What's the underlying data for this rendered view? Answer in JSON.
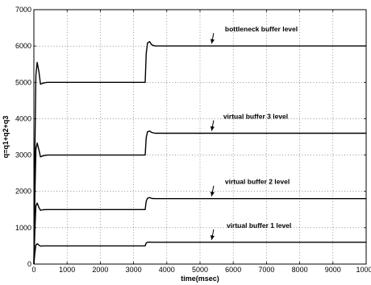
{
  "chart_data": {
    "type": "line",
    "title": "",
    "xlabel": "time(msec)",
    "ylabel": "q=q1+q2+q3",
    "xlim": [
      0,
      10000
    ],
    "ylim": [
      0,
      7000
    ],
    "xticks": [
      0,
      1000,
      2000,
      3000,
      4000,
      5000,
      6000,
      7000,
      8000,
      9000,
      10000
    ],
    "yticks": [
      0,
      1000,
      2000,
      3000,
      4000,
      5000,
      6000,
      7000
    ],
    "grid": true,
    "series": [
      {
        "name": "bottleneck buffer level",
        "x": [
          0,
          30,
          60,
          100,
          150,
          200,
          280,
          400,
          3350,
          3380,
          3420,
          3480,
          3550,
          3650,
          3800,
          10000
        ],
        "y": [
          0,
          3000,
          5200,
          5550,
          5300,
          4950,
          4980,
          5000,
          5000,
          5800,
          6080,
          6120,
          6030,
          6000,
          6000,
          6000
        ]
      },
      {
        "name": "virtual buffer 3 level",
        "x": [
          0,
          30,
          60,
          100,
          150,
          200,
          280,
          400,
          3350,
          3380,
          3420,
          3480,
          3550,
          3650,
          3800,
          10000
        ],
        "y": [
          0,
          1800,
          3150,
          3330,
          3150,
          2950,
          2980,
          3000,
          3000,
          3480,
          3640,
          3660,
          3620,
          3600,
          3600,
          3600
        ]
      },
      {
        "name": "virtual buffer 2 level",
        "x": [
          0,
          30,
          60,
          100,
          150,
          200,
          280,
          400,
          3350,
          3380,
          3420,
          3480,
          3550,
          3650,
          3800,
          10000
        ],
        "y": [
          0,
          900,
          1600,
          1680,
          1560,
          1480,
          1495,
          1500,
          1500,
          1730,
          1810,
          1830,
          1805,
          1800,
          1800,
          1800
        ]
      },
      {
        "name": "virtual buffer 1 level",
        "x": [
          0,
          30,
          60,
          100,
          150,
          200,
          280,
          400,
          3350,
          3380,
          3420,
          3480,
          3550,
          3650,
          3800,
          10000
        ],
        "y": [
          0,
          300,
          520,
          560,
          520,
          495,
          500,
          500,
          500,
          580,
          600,
          605,
          600,
          600,
          600,
          600
        ]
      }
    ],
    "annotations": [
      {
        "text": "bottleneck buffer level",
        "series": 0
      },
      {
        "text": "virtual buffer 3 level",
        "series": 1
      },
      {
        "text": "virtual buffer 2 level",
        "series": 2
      },
      {
        "text": "virtual buffer 1 level",
        "series": 3
      }
    ]
  }
}
